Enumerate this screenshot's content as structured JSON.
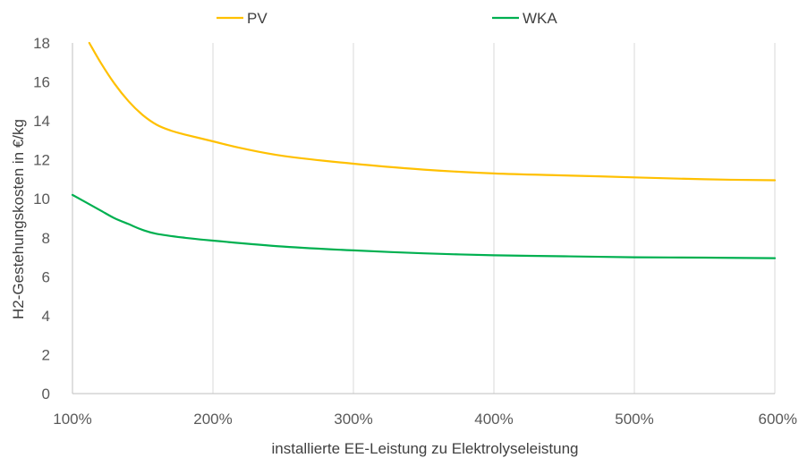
{
  "chart_data": {
    "type": "line",
    "xlabel": "installierte EE-Leistung  zu Elektrolyseleistung",
    "ylabel": "H2-Gestehungskosten  in €/kg",
    "xlim": [
      100,
      600
    ],
    "ylim": [
      0,
      18
    ],
    "x_ticks": [
      "100%",
      "200%",
      "300%",
      "400%",
      "500%",
      "600%"
    ],
    "x_tick_values": [
      100,
      200,
      300,
      400,
      500,
      600
    ],
    "y_ticks": [
      "0",
      "2",
      "4",
      "6",
      "8",
      "10",
      "12",
      "14",
      "16",
      "18"
    ],
    "y_tick_values": [
      0,
      2,
      4,
      6,
      8,
      10,
      12,
      14,
      16,
      18
    ],
    "grid": "vertical",
    "legend_position": "top",
    "series": [
      {
        "name": "PV",
        "color": "#FFC000",
        "points": [
          [
            112,
            18.0
          ],
          [
            120,
            17.0
          ],
          [
            130,
            15.9
          ],
          [
            140,
            15.0
          ],
          [
            150,
            14.3
          ],
          [
            160,
            13.8
          ],
          [
            170,
            13.5
          ],
          [
            180,
            13.3
          ],
          [
            200,
            12.95
          ],
          [
            220,
            12.6
          ],
          [
            250,
            12.2
          ],
          [
            300,
            11.8
          ],
          [
            350,
            11.5
          ],
          [
            400,
            11.3
          ],
          [
            450,
            11.2
          ],
          [
            500,
            11.1
          ],
          [
            550,
            11.0
          ],
          [
            600,
            10.95
          ]
        ]
      },
      {
        "name": "WKA",
        "color": "#00B050",
        "points": [
          [
            100,
            10.2
          ],
          [
            110,
            9.8
          ],
          [
            120,
            9.4
          ],
          [
            130,
            9.0
          ],
          [
            140,
            8.7
          ],
          [
            150,
            8.4
          ],
          [
            160,
            8.2
          ],
          [
            180,
            8.0
          ],
          [
            200,
            7.85
          ],
          [
            250,
            7.55
          ],
          [
            300,
            7.35
          ],
          [
            350,
            7.2
          ],
          [
            400,
            7.1
          ],
          [
            450,
            7.05
          ],
          [
            500,
            7.0
          ],
          [
            550,
            6.98
          ],
          [
            600,
            6.95
          ]
        ]
      }
    ]
  }
}
